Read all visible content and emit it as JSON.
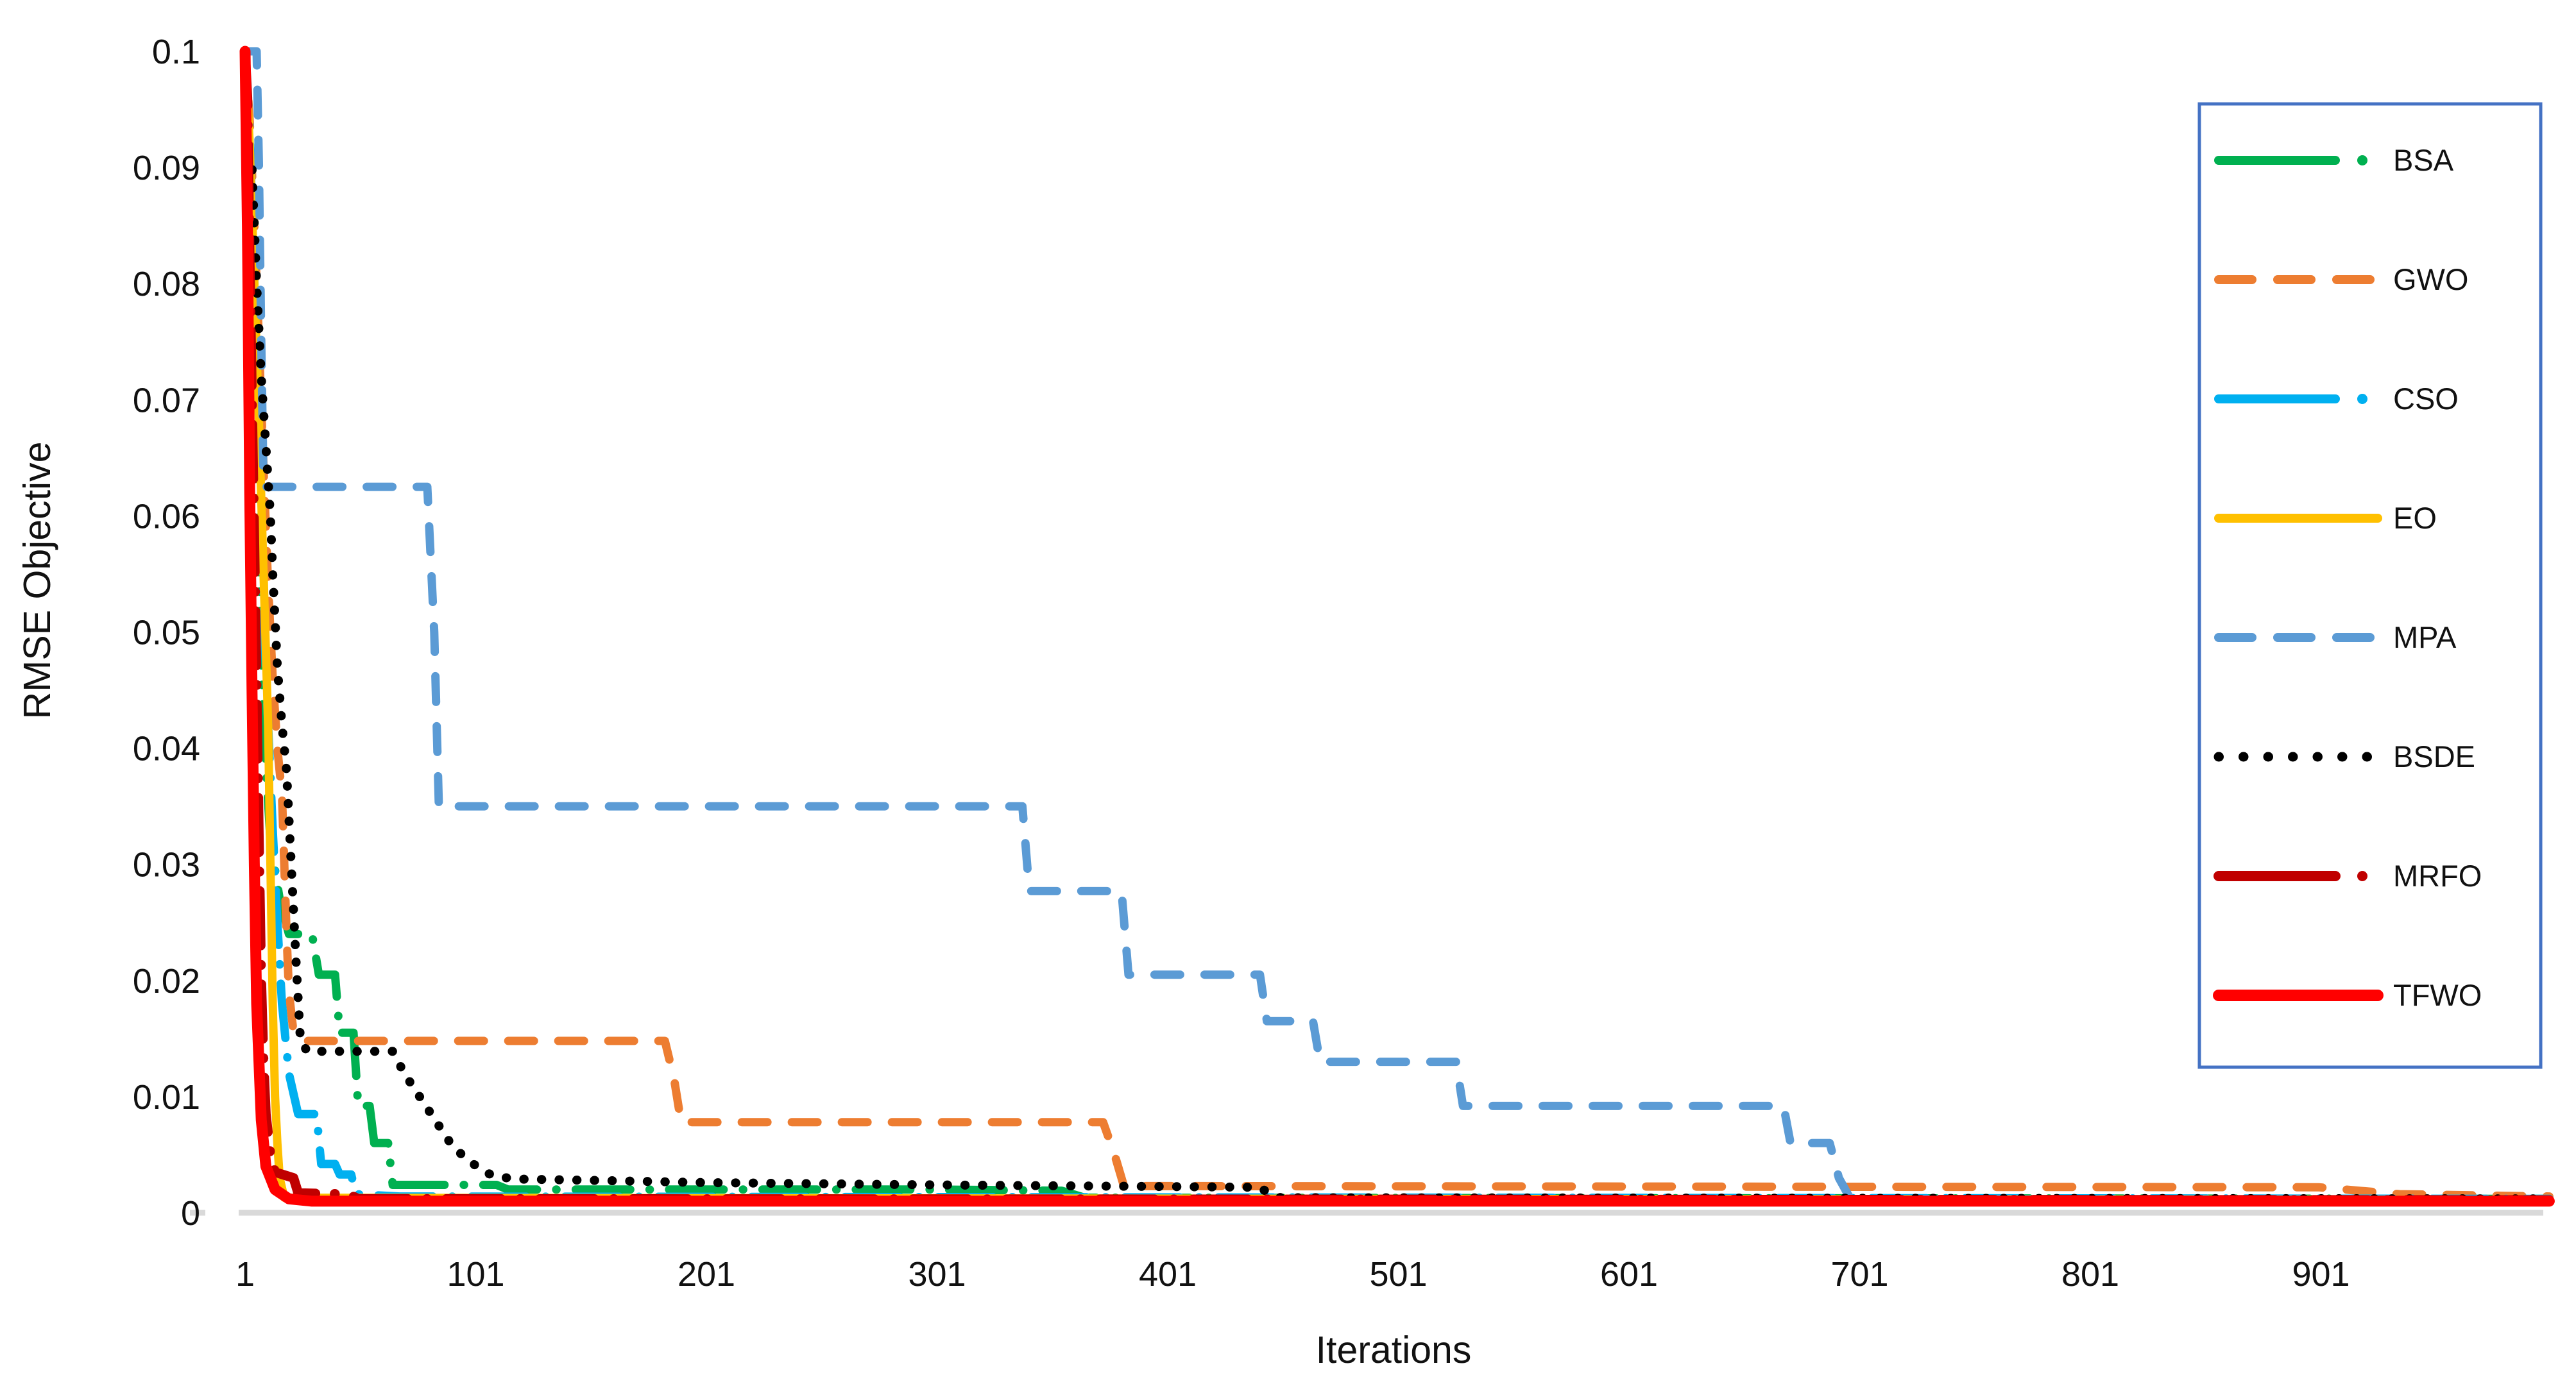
{
  "chart_data": {
    "type": "line",
    "title": "",
    "xlabel": "Iterations",
    "ylabel": "RMSE Objective",
    "xlim": [
      1,
      1012
    ],
    "ylim": [
      0,
      0.1
    ],
    "grid": false,
    "legend_position": "right",
    "x_ticks": [
      1,
      101,
      201,
      301,
      401,
      501,
      601,
      701,
      801,
      901
    ],
    "y_ticks": [
      0,
      0.01,
      0.02,
      0.03,
      0.04,
      0.05,
      0.06,
      0.07,
      0.08,
      0.09,
      0.1
    ],
    "y_tick_labels": [
      "0",
      "0.01",
      "0.02",
      "0.03",
      "0.04",
      "0.05",
      "0.06",
      "0.07",
      "0.08",
      "0.09",
      "0.1"
    ],
    "series": [
      {
        "name": "BSA",
        "color": "#00B050",
        "style": "longdashdot",
        "width": 13,
        "points": [
          [
            1,
            0.1
          ],
          [
            2,
            0.095
          ],
          [
            3,
            0.088
          ],
          [
            5,
            0.07
          ],
          [
            7,
            0.055
          ],
          [
            9,
            0.042
          ],
          [
            12,
            0.032
          ],
          [
            16,
            0.027
          ],
          [
            20,
            0.024
          ],
          [
            30,
            0.024
          ],
          [
            33,
            0.0205
          ],
          [
            40,
            0.0205
          ],
          [
            42,
            0.0155
          ],
          [
            48,
            0.0155
          ],
          [
            50,
            0.0092
          ],
          [
            55,
            0.0092
          ],
          [
            57,
            0.006
          ],
          [
            63,
            0.006
          ],
          [
            65,
            0.0024
          ],
          [
            110,
            0.0024
          ],
          [
            115,
            0.002
          ],
          [
            300,
            0.002
          ],
          [
            355,
            0.0019
          ],
          [
            365,
            0.0013
          ],
          [
            1000,
            0.0012
          ]
        ]
      },
      {
        "name": "GWO",
        "color": "#ED7D31",
        "style": "dash",
        "width": 13,
        "points": [
          [
            1,
            0.1
          ],
          [
            3,
            0.094
          ],
          [
            5,
            0.085
          ],
          [
            7,
            0.075
          ],
          [
            9,
            0.064
          ],
          [
            11,
            0.054
          ],
          [
            13,
            0.046
          ],
          [
            15,
            0.04
          ],
          [
            17,
            0.036
          ],
          [
            18,
            0.03
          ],
          [
            19,
            0.024
          ],
          [
            20,
            0.019
          ],
          [
            22,
            0.0155
          ],
          [
            26,
            0.0148
          ],
          [
            183,
            0.0148
          ],
          [
            187,
            0.0115
          ],
          [
            190,
            0.0078
          ],
          [
            373,
            0.0078
          ],
          [
            378,
            0.005
          ],
          [
            382,
            0.0023
          ],
          [
            900,
            0.0022
          ],
          [
            935,
            0.0016
          ],
          [
            1000,
            0.0014
          ]
        ]
      },
      {
        "name": "CSO",
        "color": "#00B0F0",
        "style": "longdashdot",
        "width": 13,
        "points": [
          [
            1,
            0.1
          ],
          [
            3,
            0.093
          ],
          [
            5,
            0.08
          ],
          [
            7,
            0.065
          ],
          [
            9,
            0.052
          ],
          [
            11,
            0.042
          ],
          [
            13,
            0.033
          ],
          [
            15,
            0.025
          ],
          [
            17,
            0.018
          ],
          [
            20,
            0.012
          ],
          [
            24,
            0.0085
          ],
          [
            32,
            0.0085
          ],
          [
            34,
            0.0042
          ],
          [
            40,
            0.0042
          ],
          [
            42,
            0.0033
          ],
          [
            47,
            0.0033
          ],
          [
            49,
            0.0016
          ],
          [
            68,
            0.0014
          ],
          [
            1000,
            0.0012
          ]
        ]
      },
      {
        "name": "EO",
        "color": "#FFC000",
        "style": "solid",
        "width": 13,
        "points": [
          [
            1,
            0.1
          ],
          [
            3,
            0.092
          ],
          [
            5,
            0.08
          ],
          [
            7,
            0.068
          ],
          [
            9,
            0.055
          ],
          [
            11,
            0.042
          ],
          [
            12,
            0.03
          ],
          [
            13,
            0.018
          ],
          [
            14,
            0.01
          ],
          [
            15,
            0.006
          ],
          [
            16,
            0.003
          ],
          [
            18,
            0.0013
          ],
          [
            1000,
            0.0011
          ]
        ]
      },
      {
        "name": "MPA",
        "color": "#5B9BD5",
        "style": "dash",
        "width": 13,
        "points": [
          [
            1,
            0.1
          ],
          [
            6,
            0.1
          ],
          [
            7,
            0.09
          ],
          [
            8,
            0.075
          ],
          [
            9,
            0.0625
          ],
          [
            80,
            0.0625
          ],
          [
            83,
            0.05
          ],
          [
            85,
            0.035
          ],
          [
            338,
            0.035
          ],
          [
            341,
            0.0277
          ],
          [
            381,
            0.0277
          ],
          [
            384,
            0.0205
          ],
          [
            441,
            0.0205
          ],
          [
            444,
            0.0165
          ],
          [
            464,
            0.0165
          ],
          [
            467,
            0.013
          ],
          [
            526,
            0.013
          ],
          [
            529,
            0.0092
          ],
          [
            668,
            0.0092
          ],
          [
            671,
            0.006
          ],
          [
            688,
            0.006
          ],
          [
            692,
            0.003
          ],
          [
            697,
            0.0012
          ],
          [
            1000,
            0.001
          ]
        ]
      },
      {
        "name": "BSDE",
        "color": "#000000",
        "style": "dot",
        "width": 14,
        "points": [
          [
            1,
            0.097
          ],
          [
            2,
            0.09
          ],
          [
            4,
            0.09
          ],
          [
            6,
            0.08
          ],
          [
            8,
            0.072
          ],
          [
            10,
            0.066
          ],
          [
            12,
            0.06
          ],
          [
            13,
            0.055
          ],
          [
            15,
            0.047
          ],
          [
            17,
            0.042
          ],
          [
            19,
            0.038
          ],
          [
            21,
            0.03
          ],
          [
            23,
            0.022
          ],
          [
            25,
            0.0148
          ],
          [
            28,
            0.0139
          ],
          [
            65,
            0.0139
          ],
          [
            70,
            0.012
          ],
          [
            75,
            0.0105
          ],
          [
            80,
            0.009
          ],
          [
            85,
            0.0075
          ],
          [
            90,
            0.006
          ],
          [
            95,
            0.005
          ],
          [
            100,
            0.0042
          ],
          [
            105,
            0.0035
          ],
          [
            110,
            0.0031
          ],
          [
            120,
            0.0029
          ],
          [
            150,
            0.0028
          ],
          [
            200,
            0.0026
          ],
          [
            300,
            0.0024
          ],
          [
            440,
            0.0022
          ],
          [
            450,
            0.0013
          ],
          [
            1000,
            0.0012
          ]
        ]
      },
      {
        "name": "MRFO",
        "color": "#C00000",
        "style": "longdashdot",
        "width": 15,
        "points": [
          [
            1,
            0.1
          ],
          [
            2,
            0.096
          ],
          [
            3,
            0.082
          ],
          [
            4,
            0.07
          ],
          [
            5,
            0.058
          ],
          [
            6,
            0.045
          ],
          [
            7,
            0.032
          ],
          [
            8,
            0.02
          ],
          [
            9,
            0.013
          ],
          [
            10,
            0.0085
          ],
          [
            12,
            0.005
          ],
          [
            14,
            0.0035
          ],
          [
            22,
            0.003
          ],
          [
            24,
            0.0017
          ],
          [
            46,
            0.0016
          ],
          [
            50,
            0.0012
          ],
          [
            1000,
            0.0011
          ]
        ]
      },
      {
        "name": "TFWO",
        "color": "#FF0000",
        "style": "solid",
        "width": 17,
        "points": [
          [
            1,
            0.1
          ],
          [
            2,
            0.085
          ],
          [
            3,
            0.062
          ],
          [
            4,
            0.045
          ],
          [
            5,
            0.03
          ],
          [
            6,
            0.018
          ],
          [
            8,
            0.008
          ],
          [
            10,
            0.004
          ],
          [
            14,
            0.002
          ],
          [
            20,
            0.0012
          ],
          [
            30,
            0.001
          ],
          [
            1000,
            0.001
          ]
        ]
      }
    ]
  },
  "axis": {
    "x_label": "Iterations",
    "y_label": "RMSE Objective",
    "axis_line_color": "#D9D9D9",
    "text_color": "#111111"
  },
  "legend": {
    "border_color": "#4472C4",
    "items": [
      "BSA",
      "GWO",
      "CSO",
      "EO",
      "MPA",
      "BSDE",
      "MRFO",
      "TFWO"
    ]
  }
}
